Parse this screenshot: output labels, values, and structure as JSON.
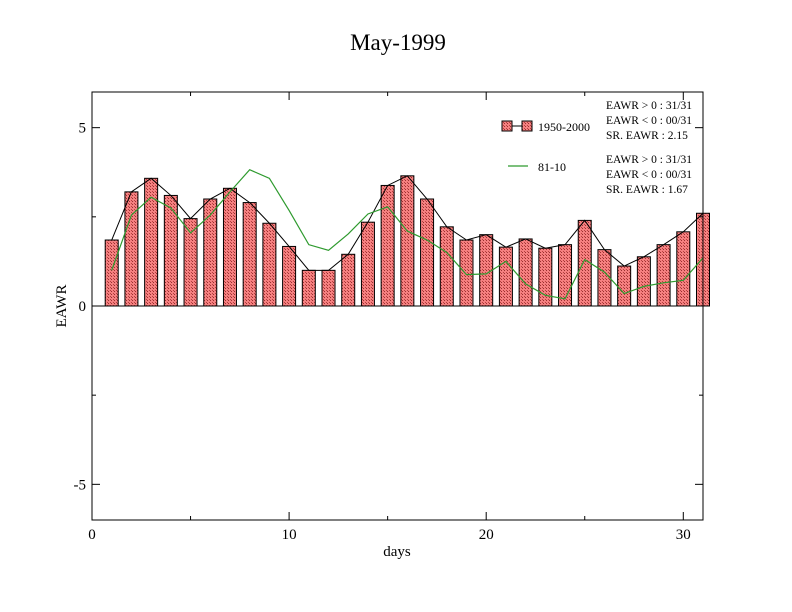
{
  "chart_data": {
    "type": "bar",
    "title": "May-1999",
    "xlabel": "days",
    "ylabel": "EAWR",
    "xlim": [
      0,
      31
    ],
    "ylim": [
      -6,
      6
    ],
    "x_ticks": [
      "0",
      "10",
      "20",
      "30"
    ],
    "y_ticks": [
      "5",
      "0",
      "-5"
    ],
    "x": [
      1,
      2,
      3,
      4,
      5,
      6,
      7,
      8,
      9,
      10,
      11,
      12,
      13,
      14,
      15,
      16,
      17,
      18,
      19,
      20,
      21,
      22,
      23,
      24,
      25,
      26,
      27,
      28,
      29,
      30,
      31
    ],
    "series": [
      {
        "name": "1950-2000",
        "style": "bar+line",
        "color": "#f06a6a",
        "values": [
          1.85,
          3.2,
          3.58,
          3.1,
          2.45,
          3.0,
          3.3,
          2.9,
          2.32,
          1.67,
          1.0,
          1.0,
          1.45,
          2.35,
          3.38,
          3.65,
          3.0,
          2.22,
          1.85,
          2.0,
          1.65,
          1.88,
          1.62,
          1.72,
          2.4,
          1.58,
          1.12,
          1.38,
          1.72,
          2.08,
          2.6
        ]
      },
      {
        "name": "81-10",
        "style": "line",
        "color": "#2e9a2e",
        "values": [
          1.0,
          2.55,
          3.05,
          2.75,
          2.05,
          2.55,
          3.2,
          3.82,
          3.58,
          2.68,
          1.72,
          1.56,
          2.02,
          2.58,
          2.78,
          2.1,
          1.85,
          1.5,
          0.88,
          0.9,
          1.25,
          0.62,
          0.3,
          0.2,
          1.3,
          0.95,
          0.35,
          0.55,
          0.65,
          0.72,
          1.35
        ]
      }
    ],
    "stats": [
      {
        "pos": "EAWR > 0 : 31/31",
        "neg": "EAWR < 0 : 00/31",
        "sr": "SR. EAWR :  2.15"
      },
      {
        "pos": "EAWR > 0 : 31/31",
        "neg": "EAWR < 0 : 00/31",
        "sr": "SR. EAWR :  1.67"
      }
    ],
    "legend_position": "top-right",
    "grid": false
  }
}
